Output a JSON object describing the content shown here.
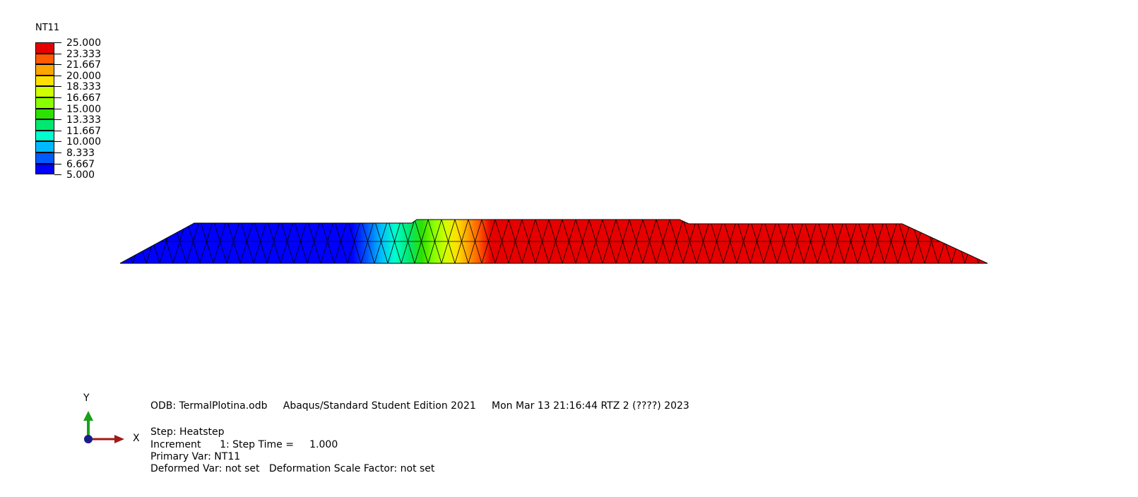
{
  "legend": {
    "title": "NT11",
    "values": [
      "25.000",
      "23.333",
      "21.667",
      "20.000",
      "18.333",
      "16.667",
      "15.000",
      "13.333",
      "11.667",
      "10.000",
      "8.333",
      "6.667",
      "5.000"
    ],
    "colors": [
      "#e60000",
      "#ff5a00",
      "#ffa500",
      "#ffe000",
      "#d0ff00",
      "#8aff00",
      "#2ce000",
      "#00e870",
      "#00ffcc",
      "#00b8ff",
      "#005aff",
      "#0000ff"
    ]
  },
  "triad": {
    "y_label": "Y",
    "x_label": "X"
  },
  "info": {
    "odb_line": "ODB: TermalPlotina.odb     Abaqus/Standard Student Edition 2021     Mon Mar 13 21:16:44 RTZ 2 (????) 2023",
    "step_line": "Step: Heatstep",
    "increment_line": "Increment      1: Step Time =     1.000",
    "primary_line": "Primary Var: NT11",
    "deformed_line": "Deformed Var: not set   Deformation Scale Factor: not set"
  }
}
